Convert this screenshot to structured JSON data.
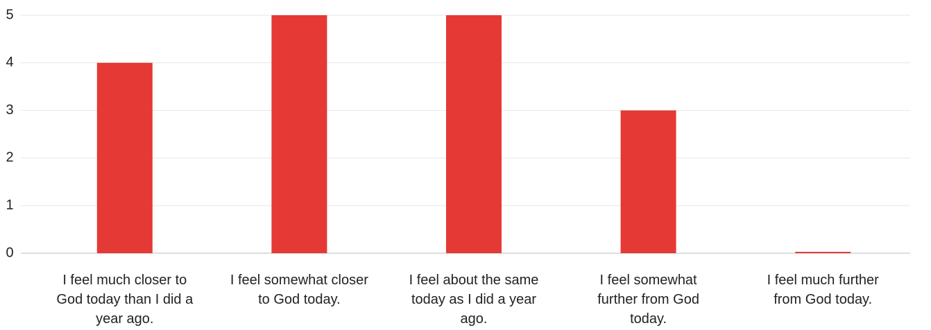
{
  "chart_data": {
    "type": "bar",
    "categories": [
      "I feel much closer to God today than I did a year ago.",
      "I feel somewhat closer to God today.",
      "I feel about the same today as I did a year ago.",
      "I feel somewhat further from God today.",
      "I feel much further from God today."
    ],
    "values": [
      4,
      5,
      5,
      3,
      0
    ],
    "color": "#e53935",
    "ylim": [
      0,
      5
    ],
    "yticks": [
      0,
      1,
      2,
      3,
      4,
      5
    ],
    "grid": true
  }
}
